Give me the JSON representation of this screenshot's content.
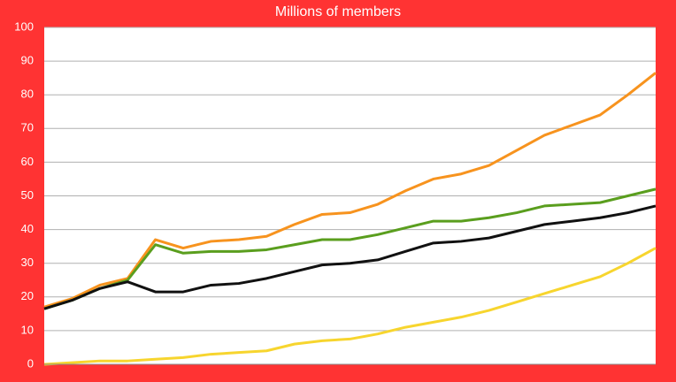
{
  "chart_data": {
    "type": "line",
    "title": "Millions of members",
    "categories": [
      null,
      null,
      null,
      null,
      null,
      null,
      null,
      null,
      null,
      null,
      null,
      null,
      null,
      null,
      null,
      null,
      null,
      null,
      null,
      null,
      null,
      null,
      null
    ],
    "series": [
      {
        "color": "#f7931e",
        "values": [
          17,
          19.5,
          23.5,
          25.5,
          37,
          34.5,
          36.5,
          37,
          38,
          41.5,
          44.5,
          45,
          47.5,
          51.5,
          55,
          56.5,
          59,
          63.5,
          68,
          71,
          74,
          80,
          86.5
        ]
      },
      {
        "color": "#5a9e1e",
        "values": [
          16.5,
          19,
          22.5,
          25,
          35.5,
          33,
          33.5,
          33.5,
          34,
          35.5,
          37,
          37,
          38.5,
          40.5,
          42.5,
          42.5,
          43.5,
          45,
          47,
          47.5,
          48,
          50,
          52
        ]
      },
      {
        "color": "#111111",
        "values": [
          16.5,
          19,
          22.5,
          24.5,
          21.5,
          21.5,
          23.5,
          24,
          25.5,
          27.5,
          29.5,
          30,
          31,
          33.5,
          36,
          36.5,
          37.5,
          39.5,
          41.5,
          42.5,
          43.5,
          45,
          47
        ]
      },
      {
        "color": "#f7d52e",
        "values": [
          0,
          0.5,
          1,
          1,
          1.5,
          2,
          3,
          3.5,
          4,
          6,
          7,
          7.5,
          9,
          11,
          12.5,
          14,
          16,
          18.5,
          21,
          23.5,
          26,
          30,
          34.5
        ]
      }
    ],
    "ylim": [
      0,
      100
    ],
    "yticks": [
      0,
      10,
      20,
      30,
      40,
      50,
      60,
      70,
      80,
      90,
      100
    ],
    "grid": true
  }
}
